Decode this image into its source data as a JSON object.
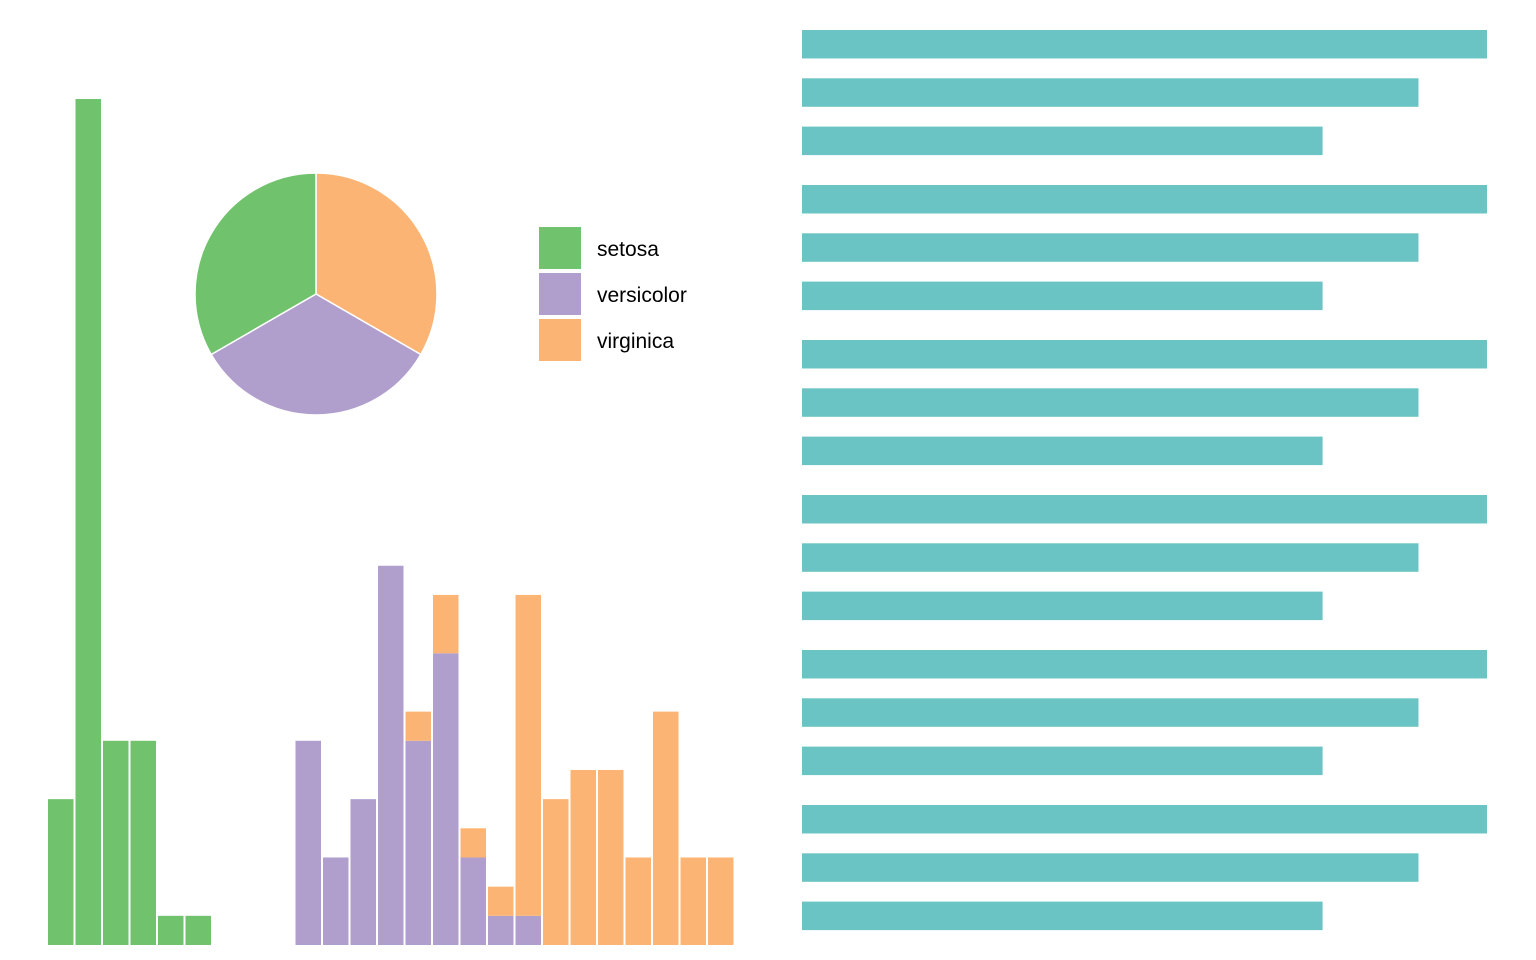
{
  "colors": {
    "setosa": "#71c26c",
    "versicolor": "#b09ecc",
    "virginica": "#fbb473",
    "rows": "#6bc4c4"
  },
  "chart_data": [
    {
      "type": "bar",
      "subtype": "stacked-histogram",
      "series_order": [
        "setosa",
        "versicolor",
        "virginica"
      ],
      "bins": [
        {
          "setosa": 5,
          "versicolor": 0,
          "virginica": 0
        },
        {
          "setosa": 29,
          "versicolor": 0,
          "virginica": 0
        },
        {
          "setosa": 7,
          "versicolor": 0,
          "virginica": 0
        },
        {
          "setosa": 7,
          "versicolor": 0,
          "virginica": 0
        },
        {
          "setosa": 1,
          "versicolor": 0,
          "virginica": 0
        },
        {
          "setosa": 1,
          "versicolor": 0,
          "virginica": 0
        },
        {
          "setosa": 0,
          "versicolor": 0,
          "virginica": 0
        },
        {
          "setosa": 0,
          "versicolor": 0,
          "virginica": 0
        },
        {
          "setosa": 0,
          "versicolor": 0,
          "virginica": 0
        },
        {
          "setosa": 0,
          "versicolor": 7,
          "virginica": 0
        },
        {
          "setosa": 0,
          "versicolor": 3,
          "virginica": 0
        },
        {
          "setosa": 0,
          "versicolor": 5,
          "virginica": 0
        },
        {
          "setosa": 0,
          "versicolor": 13,
          "virginica": 0
        },
        {
          "setosa": 0,
          "versicolor": 7,
          "virginica": 1
        },
        {
          "setosa": 0,
          "versicolor": 10,
          "virginica": 2
        },
        {
          "setosa": 0,
          "versicolor": 3,
          "virginica": 1
        },
        {
          "setosa": 0,
          "versicolor": 1,
          "virginica": 1
        },
        {
          "setosa": 0,
          "versicolor": 1,
          "virginica": 11
        },
        {
          "setosa": 0,
          "versicolor": 0,
          "virginica": 5
        },
        {
          "setosa": 0,
          "versicolor": 0,
          "virginica": 6
        },
        {
          "setosa": 0,
          "versicolor": 0,
          "virginica": 6
        },
        {
          "setosa": 0,
          "versicolor": 0,
          "virginica": 3
        },
        {
          "setosa": 0,
          "versicolor": 0,
          "virginica": 8
        },
        {
          "setosa": 0,
          "versicolor": 0,
          "virginica": 3
        },
        {
          "setosa": 0,
          "versicolor": 0,
          "virginica": 3
        }
      ],
      "ylim": [
        0,
        29
      ]
    },
    {
      "type": "pie",
      "labels": [
        "setosa",
        "versicolor",
        "virginica"
      ],
      "values": [
        50,
        50,
        50
      ],
      "legend": {
        "placement": "right",
        "entries": [
          "setosa",
          "versicolor",
          "virginica"
        ]
      }
    },
    {
      "type": "bar",
      "orientation": "horizontal",
      "groups": 6,
      "values": [
        1.0,
        0.9,
        0.76,
        1.0,
        0.9,
        0.76,
        1.0,
        0.9,
        0.76,
        1.0,
        0.9,
        0.76,
        1.0,
        0.9,
        0.76,
        1.0,
        0.9,
        0.76
      ],
      "xlim": [
        0,
        1.0
      ]
    }
  ]
}
